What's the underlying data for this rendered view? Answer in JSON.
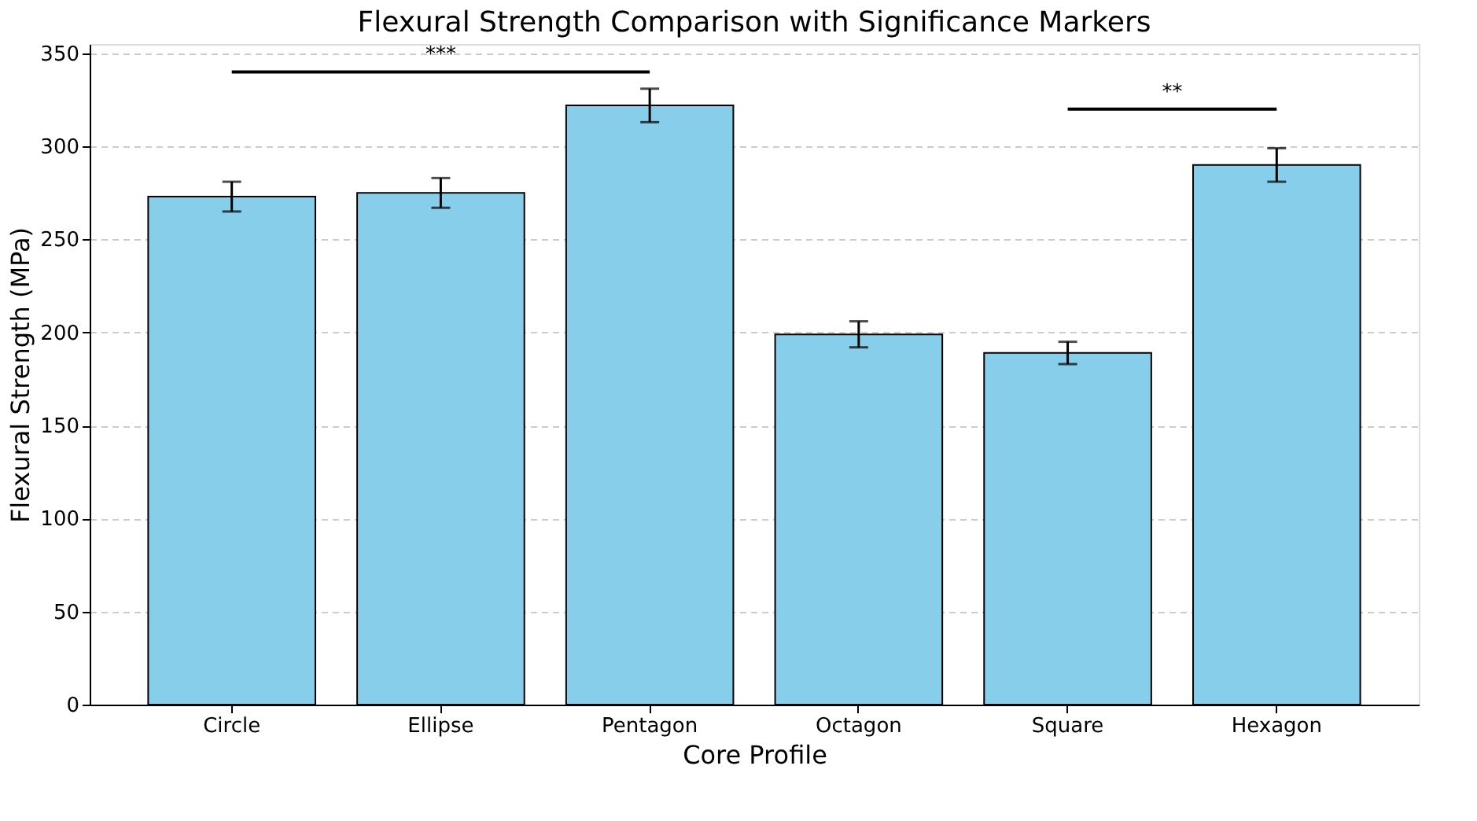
{
  "chart_data": {
    "type": "bar",
    "title": "Flexural Strength Comparison with Significance Markers",
    "xlabel": "Core Profile",
    "ylabel": "Flexural Strength (MPa)",
    "categories": [
      "Circle",
      "Ellipse",
      "Pentagon",
      "Octagon",
      "Square",
      "Hexagon"
    ],
    "values": [
      273,
      275,
      322,
      199,
      189,
      290
    ],
    "errors": [
      8,
      8,
      9,
      7,
      6,
      9
    ],
    "color": "#87ceeb",
    "ylim": [
      0,
      355
    ],
    "yticks": [
      0,
      50,
      100,
      150,
      200,
      250,
      300,
      350
    ],
    "grid": "y",
    "annotations": [
      "***",
      "**"
    ]
  }
}
